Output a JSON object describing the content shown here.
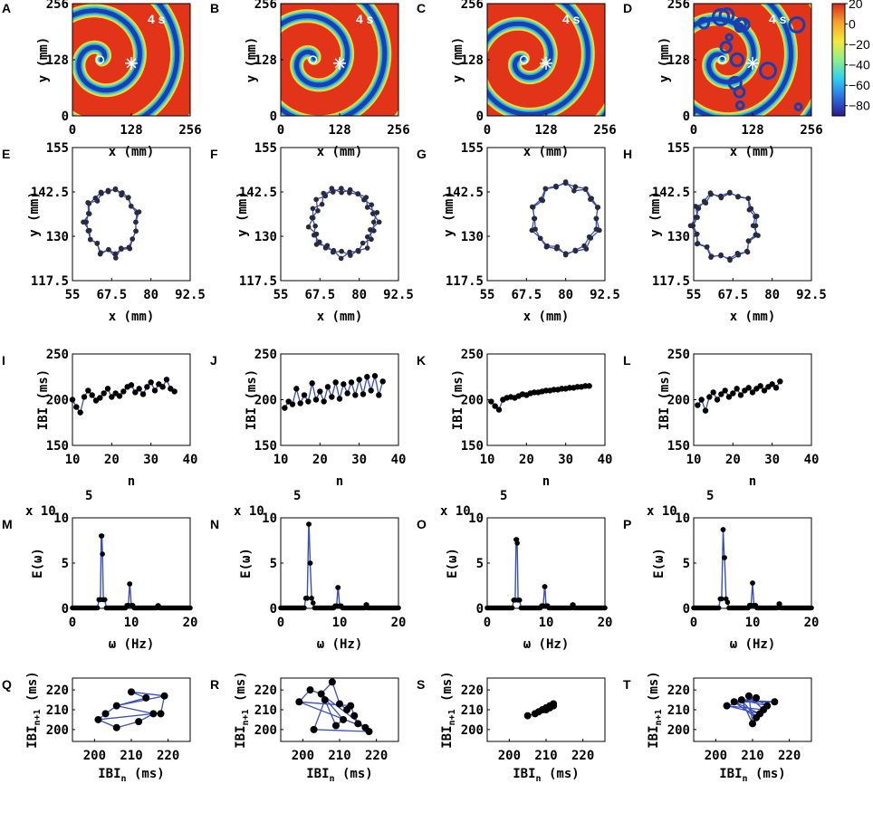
{
  "figure": {
    "panel_labels": [
      "A",
      "B",
      "C",
      "D",
      "E",
      "F",
      "G",
      "H",
      "I",
      "J",
      "K",
      "L",
      "M",
      "N",
      "O",
      "P",
      "Q",
      "R",
      "S",
      "T"
    ],
    "time_annotation": "4 s",
    "colors": {
      "line": "#3a4fbf",
      "marker": "#000000"
    }
  },
  "chart_data": [
    {
      "type": "heatmap",
      "panel": "A",
      "title": "",
      "xlabel": "x (mm)",
      "ylabel": "y (mm)",
      "xlim": [
        0,
        256
      ],
      "ylim": [
        0,
        256
      ],
      "xticks": [
        "0",
        "128",
        "256"
      ],
      "yticks": [
        "0",
        "128",
        "256"
      ],
      "annotation": "4 s",
      "spiral_phase": 0,
      "spiral_tip": [
        60,
        128
      ],
      "stimulus": [
        128,
        120
      ],
      "disordered": false
    },
    {
      "type": "heatmap",
      "panel": "B",
      "title": "",
      "xlabel": "x (mm)",
      "ylabel": "y (mm)",
      "xlim": [
        0,
        256
      ],
      "ylim": [
        0,
        256
      ],
      "xticks": [
        "0",
        "128",
        "256"
      ],
      "yticks": [
        "0",
        "128",
        "256"
      ],
      "annotation": "4 s",
      "spiral_phase": 0.9,
      "spiral_tip": [
        70,
        128
      ],
      "stimulus": [
        128,
        120
      ],
      "disordered": false
    },
    {
      "type": "heatmap",
      "panel": "C",
      "title": "",
      "xlabel": "x (mm)",
      "ylabel": "y (mm)",
      "xlim": [
        0,
        256
      ],
      "ylim": [
        0,
        256
      ],
      "xticks": [
        "0",
        "128",
        "256"
      ],
      "yticks": [
        "0",
        "128",
        "256"
      ],
      "annotation": "4 s",
      "spiral_phase": 2.2,
      "spiral_tip": [
        80,
        128
      ],
      "stimulus": [
        128,
        120
      ],
      "disordered": false
    },
    {
      "type": "heatmap",
      "panel": "D",
      "title": "",
      "xlabel": "x (mm)",
      "ylabel": "y (mm)",
      "xlim": [
        0,
        256
      ],
      "ylim": [
        0,
        256
      ],
      "xticks": [
        "0",
        "128",
        "256"
      ],
      "yticks": [
        "0",
        "128",
        "256"
      ],
      "annotation": "4 s",
      "spiral_phase": 1.4,
      "spiral_tip": [
        62,
        128
      ],
      "stimulus": [
        128,
        120
      ],
      "disordered": true,
      "colorbar": {
        "range": [
          -90,
          20
        ],
        "ticks": [
          "20",
          "0",
          "-20",
          "-40",
          "-60",
          "-80"
        ],
        "colors": [
          "#2b1a8f",
          "#2f6fe0",
          "#2fd0f0",
          "#8ef08a",
          "#f6e93a",
          "#f5a12c",
          "#d92b1a"
        ]
      }
    },
    {
      "type": "scatter",
      "panel": "E",
      "xlabel": "x (mm)",
      "ylabel": "y (mm)",
      "xlim": [
        55,
        92.5
      ],
      "ylim": [
        117.5,
        155
      ],
      "xticks": [
        "55",
        "67.5",
        "80",
        "92.5"
      ],
      "yticks": [
        "117.5",
        "130",
        "142.5",
        "155"
      ],
      "center": [
        67.5,
        134
      ],
      "radius": [
        8,
        9
      ],
      "points": 44
    },
    {
      "type": "scatter",
      "panel": "F",
      "xlabel": "x (mm)",
      "ylabel": "y (mm)",
      "xlim": [
        55,
        92.5
      ],
      "ylim": [
        117.5,
        155
      ],
      "xticks": [
        "55",
        "67.5",
        "80",
        "92.5"
      ],
      "yticks": [
        "117.5",
        "130",
        "142.5",
        "155"
      ],
      "center": [
        75,
        134
      ],
      "radius": [
        10,
        9
      ],
      "points": 46
    },
    {
      "type": "scatter",
      "panel": "G",
      "xlabel": "x (mm)",
      "ylabel": "y (mm)",
      "xlim": [
        55,
        92.5
      ],
      "ylim": [
        117.5,
        155
      ],
      "xticks": [
        "55",
        "67.5",
        "80",
        "92.5"
      ],
      "yticks": [
        "117.5",
        "130",
        "142.5",
        "155"
      ],
      "center": [
        80,
        135
      ],
      "radius": [
        10,
        9.5
      ],
      "points": 40
    },
    {
      "type": "scatter",
      "panel": "H",
      "xlabel": "x (mm)",
      "ylabel": "y (mm)",
      "xlim": [
        55,
        92.5
      ],
      "ylim": [
        117.5,
        155
      ],
      "xticks": [
        "55",
        "67.5",
        "80",
        "92.5"
      ],
      "yticks": [
        "117.5",
        "130",
        "142.5",
        "155"
      ],
      "center": [
        65,
        133
      ],
      "radius": [
        10,
        9
      ],
      "points": 44
    },
    {
      "type": "line",
      "panel": "I",
      "xlabel": "n",
      "ylabel": "IBI (ms)",
      "xlim": [
        10,
        40
      ],
      "ylim": [
        150,
        250
      ],
      "xticks": [
        "10",
        "20",
        "30",
        "40"
      ],
      "yticks": [
        "150",
        "200",
        "250"
      ],
      "x": [
        10,
        11,
        12,
        13,
        14,
        15,
        16,
        17,
        18,
        19,
        20,
        21,
        22,
        23,
        24,
        25,
        26,
        27,
        28,
        29,
        30,
        31,
        32,
        33,
        34,
        35,
        36
      ],
      "y": [
        200,
        192,
        186,
        203,
        210,
        205,
        199,
        202,
        207,
        212,
        203,
        207,
        204,
        209,
        214,
        216,
        208,
        212,
        206,
        214,
        219,
        210,
        217,
        214,
        222,
        212,
        209
      ]
    },
    {
      "type": "line",
      "panel": "J",
      "xlabel": "n",
      "ylabel": "IBI (ms)",
      "xlim": [
        10,
        40
      ],
      "ylim": [
        150,
        250
      ],
      "xticks": [
        "10",
        "20",
        "30",
        "40"
      ],
      "yticks": [
        "150",
        "200",
        "250"
      ],
      "x": [
        11,
        12,
        13,
        14,
        15,
        16,
        17,
        18,
        19,
        20,
        21,
        22,
        23,
        24,
        25,
        26,
        27,
        28,
        29,
        30,
        31,
        32,
        33,
        34,
        35,
        36
      ],
      "y": [
        191,
        198,
        195,
        212,
        196,
        205,
        198,
        218,
        200,
        209,
        198,
        214,
        203,
        219,
        201,
        217,
        207,
        219,
        205,
        222,
        206,
        225,
        210,
        226,
        205,
        220
      ]
    },
    {
      "type": "line",
      "panel": "K",
      "xlabel": "n",
      "ylabel": "IBI (ms)",
      "xlim": [
        10,
        40
      ],
      "ylim": [
        150,
        250
      ],
      "xticks": [
        "10",
        "20",
        "30",
        "40"
      ],
      "yticks": [
        "150",
        "200",
        "250"
      ],
      "x": [
        11,
        12,
        13,
        14,
        15,
        16,
        17,
        18,
        19,
        20,
        21,
        22,
        23,
        24,
        25,
        26,
        27,
        28,
        29,
        30,
        31,
        32,
        33,
        34,
        35,
        36
      ],
      "y": [
        198,
        193,
        189,
        200,
        202,
        203,
        202,
        204,
        206,
        205,
        207,
        208,
        208,
        209,
        210,
        210,
        211,
        211,
        212,
        212,
        213,
        213,
        214,
        214,
        215,
        215
      ]
    },
    {
      "type": "line",
      "panel": "L",
      "xlabel": "n",
      "ylabel": "IBI (ms)",
      "xlim": [
        10,
        40
      ],
      "ylim": [
        150,
        250
      ],
      "xticks": [
        "10",
        "20",
        "30",
        "40"
      ],
      "yticks": [
        "150",
        "200",
        "250"
      ],
      "x": [
        11,
        12,
        13,
        14,
        15,
        16,
        17,
        18,
        19,
        20,
        21,
        22,
        23,
        24,
        25,
        26,
        27,
        28,
        29,
        30,
        31,
        32
      ],
      "y": [
        194,
        200,
        188,
        203,
        208,
        200,
        206,
        210,
        203,
        207,
        212,
        205,
        210,
        213,
        208,
        212,
        215,
        210,
        214,
        217,
        213,
        220
      ]
    },
    {
      "type": "line",
      "panel": "M",
      "xlabel": "ω (Hz)",
      "ylabel": "E(ω)",
      "multiplier": "x 10",
      "multiplier_exp": "5",
      "xlim": [
        0,
        20
      ],
      "ylim": [
        0,
        10
      ],
      "xticks": [
        "0",
        "10",
        "20"
      ],
      "yticks": [
        "0",
        "5",
        "10"
      ],
      "peaks": [
        [
          4.9,
          8
        ],
        [
          5.1,
          6
        ],
        [
          9.7,
          2.7
        ],
        [
          14.6,
          0.3
        ]
      ]
    },
    {
      "type": "line",
      "panel": "N",
      "xlabel": "ω (Hz)",
      "ylabel": "E(ω)",
      "multiplier": "x 10",
      "multiplier_exp": "5",
      "xlim": [
        0,
        20
      ],
      "ylim": [
        0,
        10
      ],
      "xticks": [
        "0",
        "10",
        "20"
      ],
      "yticks": [
        "0",
        "5",
        "10"
      ],
      "peaks": [
        [
          4.8,
          9.3
        ],
        [
          5.0,
          5
        ],
        [
          9.7,
          2.3
        ],
        [
          14.6,
          0.4
        ]
      ]
    },
    {
      "type": "line",
      "panel": "O",
      "xlabel": "ω (Hz)",
      "ylabel": "E(ω)",
      "multiplier": "x 10",
      "multiplier_exp": "5",
      "xlim": [
        0,
        20
      ],
      "ylim": [
        0,
        10
      ],
      "xticks": [
        "0",
        "10",
        "20"
      ],
      "yticks": [
        "0",
        "5",
        "10"
      ],
      "peaks": [
        [
          4.9,
          7.6
        ],
        [
          5.1,
          7.2
        ],
        [
          9.8,
          2.4
        ],
        [
          14.6,
          0.4
        ]
      ]
    },
    {
      "type": "line",
      "panel": "P",
      "xlabel": "ω (Hz)",
      "ylabel": "E(ω)",
      "multiplier": "x 10",
      "multiplier_exp": "5",
      "xlim": [
        0,
        20
      ],
      "ylim": [
        0,
        10
      ],
      "xticks": [
        "0",
        "10",
        "20"
      ],
      "yticks": [
        "0",
        "5",
        "10"
      ],
      "peaks": [
        [
          5.0,
          8.7
        ],
        [
          5.2,
          5.6
        ],
        [
          10.0,
          2.8
        ],
        [
          14.6,
          0.5
        ]
      ]
    },
    {
      "type": "scatter",
      "panel": "Q",
      "xlabel": "IBI",
      "xlabel_sub": "n",
      "xlabel_unit": " (ms)",
      "ylabel": "IBI",
      "ylabel_sub": "n+1",
      "ylabel_unit": " (ms)",
      "xlim": [
        194,
        226
      ],
      "ylim": [
        194,
        226
      ],
      "xticks": [
        "200",
        "210",
        "220"
      ],
      "yticks": [
        "200",
        "210",
        "220"
      ],
      "points": [
        [
          201,
          205
        ],
        [
          206,
          201
        ],
        [
          212,
          204
        ],
        [
          216,
          208
        ],
        [
          218,
          208
        ],
        [
          219,
          217
        ],
        [
          210,
          219
        ],
        [
          214,
          216
        ],
        [
          206,
          212
        ],
        [
          203,
          208
        ]
      ],
      "path": [
        0,
        1,
        2,
        3,
        4,
        5,
        6,
        7,
        8,
        9,
        0,
        3,
        8,
        5
      ]
    },
    {
      "type": "scatter",
      "panel": "R",
      "xlabel": "IBI",
      "xlabel_sub": "n",
      "xlabel_unit": " (ms)",
      "ylabel": "IBI",
      "ylabel_sub": "n+1",
      "ylabel_unit": " (ms)",
      "xlim": [
        194,
        226
      ],
      "ylim": [
        194,
        226
      ],
      "xticks": [
        "200",
        "210",
        "220"
      ],
      "yticks": [
        "200",
        "210",
        "220"
      ],
      "points": [
        [
          199,
          214
        ],
        [
          202,
          220
        ],
        [
          205,
          218
        ],
        [
          208,
          224
        ],
        [
          210,
          213
        ],
        [
          212,
          210
        ],
        [
          213,
          212
        ],
        [
          214,
          207
        ],
        [
          215,
          203
        ],
        [
          217,
          201
        ],
        [
          218,
          199
        ],
        [
          203,
          200
        ],
        [
          206,
          215
        ],
        [
          209,
          202
        ],
        [
          211,
          205
        ]
      ],
      "path": [
        0,
        1,
        2,
        3,
        4,
        5,
        6,
        7,
        8,
        9,
        10,
        11,
        12,
        13,
        14,
        2,
        9,
        0,
        6
      ]
    },
    {
      "type": "scatter",
      "panel": "S",
      "xlabel": "IBI",
      "xlabel_sub": "n",
      "xlabel_unit": " (ms)",
      "ylabel": "IBI",
      "ylabel_sub": "n+1",
      "ylabel_unit": " (ms)",
      "xlim": [
        194,
        226
      ],
      "ylim": [
        194,
        226
      ],
      "xticks": [
        "200",
        "210",
        "220"
      ],
      "yticks": [
        "200",
        "210",
        "220"
      ],
      "points": [
        [
          205,
          207
        ],
        [
          207,
          208
        ],
        [
          208,
          209
        ],
        [
          209,
          210
        ],
        [
          210,
          211
        ],
        [
          211,
          212
        ],
        [
          212,
          213
        ],
        [
          212,
          212
        ],
        [
          211,
          211
        ],
        [
          210,
          210
        ]
      ],
      "path": [
        0,
        1,
        2,
        3,
        4,
        5,
        6,
        7,
        8,
        9,
        3
      ]
    },
    {
      "type": "scatter",
      "panel": "T",
      "xlabel": "IBI",
      "xlabel_sub": "n",
      "xlabel_unit": " (ms)",
      "ylabel": "IBI",
      "ylabel_sub": "n+1",
      "ylabel_unit": " (ms)",
      "xlim": [
        194,
        226
      ],
      "ylim": [
        194,
        226
      ],
      "xticks": [
        "200",
        "210",
        "220"
      ],
      "yticks": [
        "200",
        "210",
        "220"
      ],
      "points": [
        [
          203,
          212
        ],
        [
          205,
          214
        ],
        [
          207,
          215
        ],
        [
          209,
          217
        ],
        [
          211,
          216
        ],
        [
          216,
          214
        ],
        [
          214,
          212
        ],
        [
          213,
          210
        ],
        [
          212,
          208
        ],
        [
          211,
          206
        ],
        [
          210,
          203
        ]
      ],
      "path": [
        0,
        4,
        1,
        5,
        2,
        6,
        3,
        7,
        0,
        8,
        1,
        9,
        2,
        10,
        3
      ]
    }
  ]
}
